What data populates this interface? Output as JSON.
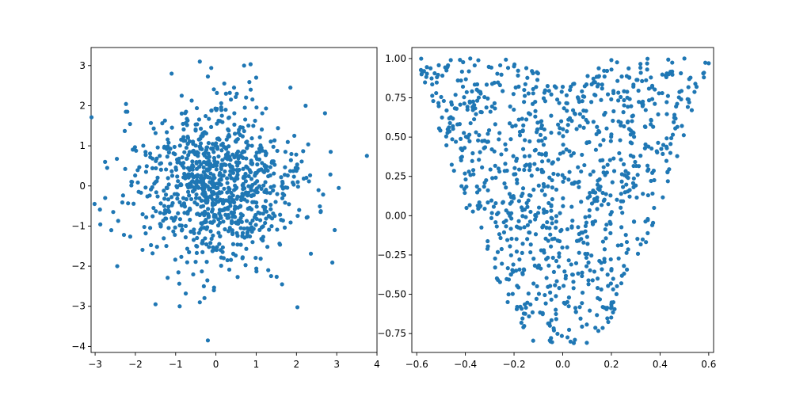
{
  "chart_data": [
    {
      "type": "scatter",
      "title": "",
      "xlabel": "",
      "ylabel": "",
      "xlim": [
        -3.1,
        4.0
      ],
      "ylim": [
        -4.15,
        3.45
      ],
      "xticks": [
        -3,
        -2,
        -1,
        0,
        1,
        2,
        3,
        4
      ],
      "yticks": [
        -4,
        -3,
        -2,
        -1,
        0,
        1,
        2,
        3
      ],
      "xtick_labels": [
        "−3",
        "−2",
        "−1",
        "0",
        "1",
        "2",
        "3",
        "4"
      ],
      "ytick_labels": [
        "−4",
        "−3",
        "−2",
        "−1",
        "0",
        "1",
        "2",
        "3"
      ],
      "grid": false,
      "series": [
        {
          "color": "#1f77b4",
          "marker": "circle",
          "distribution": "bivariate normal, mean (0, 0), sd 1, ~1000 points",
          "points": [
            [
              3.75,
              0.75
            ],
            [
              -0.4,
              3.1
            ],
            [
              0.7,
              3.0
            ],
            [
              -0.2,
              -3.85
            ],
            [
              -2.45,
              -2.0
            ],
            [
              -2.7,
              0.45
            ],
            [
              3.05,
              -0.05
            ],
            [
              2.95,
              -1.1
            ],
            [
              2.85,
              0.85
            ],
            [
              -0.9,
              -3.0
            ],
            [
              -1.5,
              -2.95
            ],
            [
              -0.4,
              -2.9
            ],
            [
              1.0,
              2.7
            ],
            [
              -1.1,
              2.8
            ],
            [
              1.85,
              2.45
            ],
            [
              0.45,
              2.45
            ],
            [
              -2.2,
              1.85
            ],
            [
              -2.75,
              -0.3
            ],
            [
              -2.55,
              -0.65
            ],
            [
              2.6,
              -0.65
            ],
            [
              1.3,
              -2.1
            ],
            [
              -0.05,
              -2.6
            ],
            [
              -0.3,
              -2.5
            ],
            [
              -0.85,
              2.25
            ],
            [
              0.25,
              2.3
            ]
          ]
        }
      ]
    },
    {
      "type": "scatter",
      "title": "",
      "xlabel": "",
      "ylabel": "",
      "xlim": [
        -0.62,
        0.62
      ],
      "ylim": [
        -0.87,
        1.07
      ],
      "xticks": [
        -0.6,
        -0.4,
        -0.2,
        0.0,
        0.2,
        0.4,
        0.6
      ],
      "yticks": [
        -0.75,
        -0.5,
        -0.25,
        0.0,
        0.25,
        0.5,
        0.75,
        1.0
      ],
      "xtick_labels": [
        "−0.6",
        "−0.4",
        "−0.2",
        "0.0",
        "0.2",
        "0.4",
        "0.6"
      ],
      "ytick_labels": [
        "−0.75",
        "−0.50",
        "−0.25",
        "0.00",
        "0.25",
        "0.50",
        "0.75",
        "1.00"
      ],
      "grid": false,
      "series": [
        {
          "color": "#1f77b4",
          "marker": "circle",
          "distribution": "uniform points filling a heart / V-shaped region, ~1000 points",
          "points": [
            [
              -0.58,
              0.9
            ],
            [
              -0.57,
              0.92
            ],
            [
              0.6,
              0.97
            ],
            [
              0.58,
              0.88
            ],
            [
              -0.05,
              -0.8
            ],
            [
              0.05,
              -0.79
            ],
            [
              -0.2,
              0.95
            ],
            [
              0.2,
              0.99
            ],
            [
              -0.38,
              1.0
            ],
            [
              0.5,
              1.0
            ],
            [
              -0.52,
              0.78
            ],
            [
              0.55,
              0.82
            ],
            [
              0.0,
              0.82
            ],
            [
              0.03,
              0.8
            ],
            [
              -0.46,
              0.99
            ]
          ]
        }
      ]
    }
  ]
}
